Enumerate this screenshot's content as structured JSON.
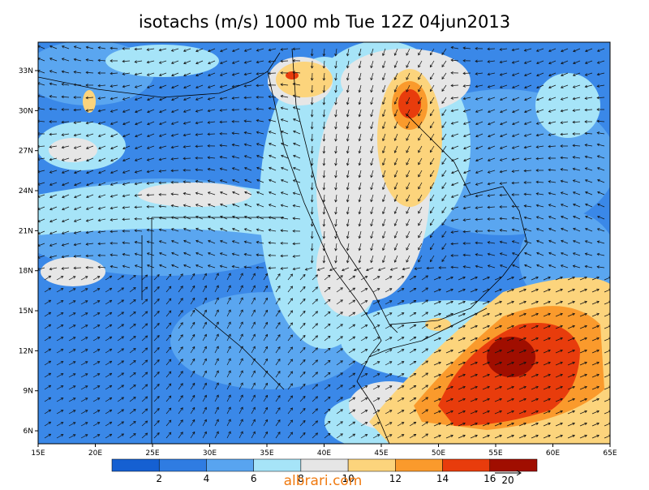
{
  "title": "isotachs (m/s) 1000 mb Tue 12Z 04jun2013",
  "map": {
    "xlim": [
      15,
      65
    ],
    "ylim": [
      5.03,
      35.13
    ],
    "xticks": [
      {
        "value": 15,
        "label": "15E"
      },
      {
        "value": 20,
        "label": "20E"
      },
      {
        "value": 25,
        "label": "25E"
      },
      {
        "value": 30,
        "label": "30E"
      },
      {
        "value": 35,
        "label": "35E"
      },
      {
        "value": 40,
        "label": "40E"
      },
      {
        "value": 45,
        "label": "45E"
      },
      {
        "value": 50,
        "label": "50E"
      },
      {
        "value": 55,
        "label": "55E"
      },
      {
        "value": 60,
        "label": "60E"
      },
      {
        "value": 65,
        "label": "65E"
      }
    ],
    "yticks": [
      {
        "value": 6,
        "label": "6N"
      },
      {
        "value": 9,
        "label": "9N"
      },
      {
        "value": 12,
        "label": "12N"
      },
      {
        "value": 15,
        "label": "15N"
      },
      {
        "value": 18,
        "label": "18N"
      },
      {
        "value": 21,
        "label": "21N"
      },
      {
        "value": 24,
        "label": "24N"
      },
      {
        "value": 27,
        "label": "27N"
      },
      {
        "value": 30,
        "label": "30N"
      },
      {
        "value": 33,
        "label": "33N"
      }
    ]
  },
  "colorbar": {
    "levels": [
      2,
      4,
      6,
      8,
      10,
      12,
      14,
      16
    ],
    "colors": [
      "#1560d2",
      "#2f7ce2",
      "#58a4f0",
      "#a6e4f8",
      "#e6e6e6",
      "#fcd47c",
      "#fa9a2c",
      "#e83c0c",
      "#a00e00"
    ]
  },
  "reference_vector": {
    "value": 20
  },
  "watermark": "albrari.com"
}
